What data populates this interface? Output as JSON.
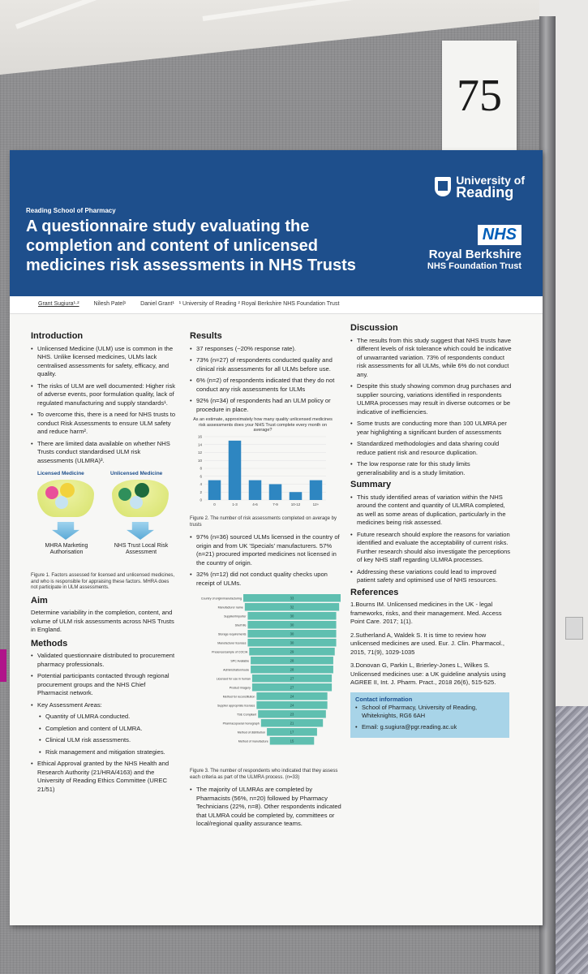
{
  "booth_number": "75",
  "header": {
    "school": "Reading School of Pharmacy",
    "title": "A questionnaire study evaluating the completion and content of unlicensed medicines risk assessments in NHS Trusts",
    "uor_line1": "University of",
    "uor_line2": "Reading",
    "nhs": "NHS",
    "trust_line1": "Royal Berkshire",
    "trust_line2": "NHS Foundation Trust"
  },
  "authors": {
    "a1": "Grant Sugiura¹·²",
    "a2": "Nilesh Patel¹",
    "a3": "Daniel Grant¹",
    "affil": "¹ University of Reading ² Royal Berkshire NHS Foundation Trust"
  },
  "intro": {
    "heading": "Introduction",
    "b1": "Unlicensed Medicine (ULM) use is common in the NHS. Unlike licensed medicines, ULMs lack centralised assessments for safety, efficacy, and quality.",
    "b2": "The risks of ULM are well documented: Higher risk of adverse events, poor formulation quality, lack of regulated manufacturing and supply standards¹.",
    "b3": "To overcome this, there is a need for NHS trusts to conduct Risk Assessments to ensure ULM safety and reduce harm².",
    "b4": "There are limited data available on whether NHS Trusts conduct standardised ULM risk assessments (ULMRA)³."
  },
  "fig1": {
    "left_label": "Licensed Medicine",
    "right_label": "Unlicensed Medicine",
    "left_out": "MHRA Marketing Authorisation",
    "right_out": "NHS Trust Local Risk Assessment",
    "caption": "Figure 1. Factors assessed for licensed and unlicensed medicines, and who is responsible for appraising these factors. MHRA does not participate in ULM assessments."
  },
  "aim": {
    "heading": "Aim",
    "text": "Determine variability in the completion, content, and volume of ULM risk assessments across NHS Trusts in England."
  },
  "methods": {
    "heading": "Methods",
    "b1": "Validated questionnaire distributed to procurement pharmacy professionals.",
    "b2": "Potential participants contacted through regional procurement groups and the NHS Chief Pharmacist network.",
    "b3": "Key Assessment Areas:",
    "s1": "Quantity of ULMRA conducted.",
    "s2": "Completion and content of ULMRA.",
    "s3": "Clinical ULM risk assessments.",
    "s4": "Risk management and mitigation strategies.",
    "b4": "Ethical Approval granted by the NHS Health and Research Authority (21/HRA/4163) and the University of Reading Ethics Committee (UREC 21/51)"
  },
  "results": {
    "heading": "Results",
    "b1": "37 responses (~20% response rate).",
    "b2": "73% (n=27) of respondents conducted quality and clinical risk assessments for all ULMs before use.",
    "b3": "6% (n=2) of respondents indicated that they do not conduct any risk assessments for ULMs",
    "b4": "92% (n=34) of respondents had an ULM policy or procedure in place.",
    "fig2_caption": "Figure 2. The number of risk assessments completed on average by trusts",
    "b5": "97% (n=36) sourced ULMs licensed in the country of origin and from UK 'Specials' manufacturers. 57% (n=21) procured imported medicines not licensed in the country of origin.",
    "b6": "32% (n=12) did not conduct quality checks upon receipt of ULMs.",
    "fig3_caption": "Figure 3. The number of respondents who indicated that they assess each criteria as part of the ULMRA process. (n=33)",
    "b7": "The majority of ULMRAs are completed by Pharmacists (56%, n=20) followed by Pharmacy Technicians (22%, n=8). Other respondents indicated that ULMRA could be completed by, committees or local/regional quality assurance teams."
  },
  "chart_data": [
    {
      "type": "bar",
      "title": "As an estimate, approximately how many quality unlicensed medicines risk assessments does your NHS Trust complete every month on average?",
      "categories": [
        "0",
        "1-3",
        "4-6",
        "7-9",
        "10-12",
        "12+"
      ],
      "values": [
        5,
        15,
        5,
        4,
        2,
        5
      ],
      "ylim": [
        0,
        16
      ],
      "yticks": [
        0,
        2,
        4,
        6,
        8,
        10,
        12,
        14,
        16
      ],
      "bar_color": "#2e86c1"
    },
    {
      "type": "bar",
      "orientation": "funnel",
      "categories": [
        "Country of origin/manufacturing",
        "Manufacturer name",
        "Supplier/importer",
        "Shelf life",
        "Storage requirements",
        "Manufacturer licenses",
        "Presence/sample of COC/A",
        "SPC Available",
        "Administration/route",
        "Licensed for use in human",
        "Product imagery",
        "Method for reconstitution",
        "Supplier appropriate licenses",
        "TSE Compliant",
        "Pharmacopoeial monograph",
        "Method of distribution",
        "Method of manufacture"
      ],
      "values": [
        33,
        32,
        30,
        30,
        30,
        30,
        29,
        28,
        28,
        27,
        27,
        24,
        24,
        23,
        21,
        17,
        15
      ],
      "bar_color": "#5fbfb0"
    }
  ],
  "discussion": {
    "heading": "Discussion",
    "b1": "The results from this study suggest that NHS trusts have different levels of risk tolerance which could be indicative of unwarranted variation. 73% of respondents conduct risk assessments for all ULMs, while 6% do not conduct any.",
    "b2": "Despite this study showing common drug purchases and supplier sourcing, variations identified in respondents ULMRA processes may result in diverse outcomes or be indicative of inefficiencies.",
    "b3": "Some trusts are conducting more than 100 ULMRA per year highlighting a significant burden of assessments",
    "b4": "Standardized methodologies and data sharing could reduce patient risk and resource duplication.",
    "b5": "The low response rate for this study limits generalisability and is a study limitation."
  },
  "summary": {
    "heading": "Summary",
    "b1": "This study identified areas of variation within the NHS around the content and quantity of ULMRA completed, as well as some areas of duplication, particularly in the medicines being risk assessed.",
    "b2": "Future research should explore the reasons for variation identified and evaluate the acceptability of current risks. Further research should also investigate the perceptions of key NHS staff regarding ULMRA processes.",
    "b3": "Addressing these variations could lead to improved patient safety and optimised use of NHS resources."
  },
  "references": {
    "heading": "References",
    "r1": "1.Bourns IM. Unlicensed medicines in the UK - legal frameworks, risks, and their management. Med. Access Point Care. 2017; 1(1).",
    "r2": "2.Sutherland A, Waldek S. It is time to review how unlicensed medicines are used. Eur. J. Clin. Pharmacol., 2015, 71(9), 1029-1035",
    "r3": "3.Donovan G, Parkin L, Brierley-Jones L, Wilkes S. Unlicensed medicines use: a UK guideline analysis using AGREE II, Int. J. Pharm. Pract., 2018 26(6), 515-525."
  },
  "contact": {
    "heading": "Contact information",
    "c1": "School of Pharmacy, University of Reading, Whiteknights, RG6 6AH",
    "c2": "Email: g.sugiura@pgr.reading.ac.uk"
  }
}
